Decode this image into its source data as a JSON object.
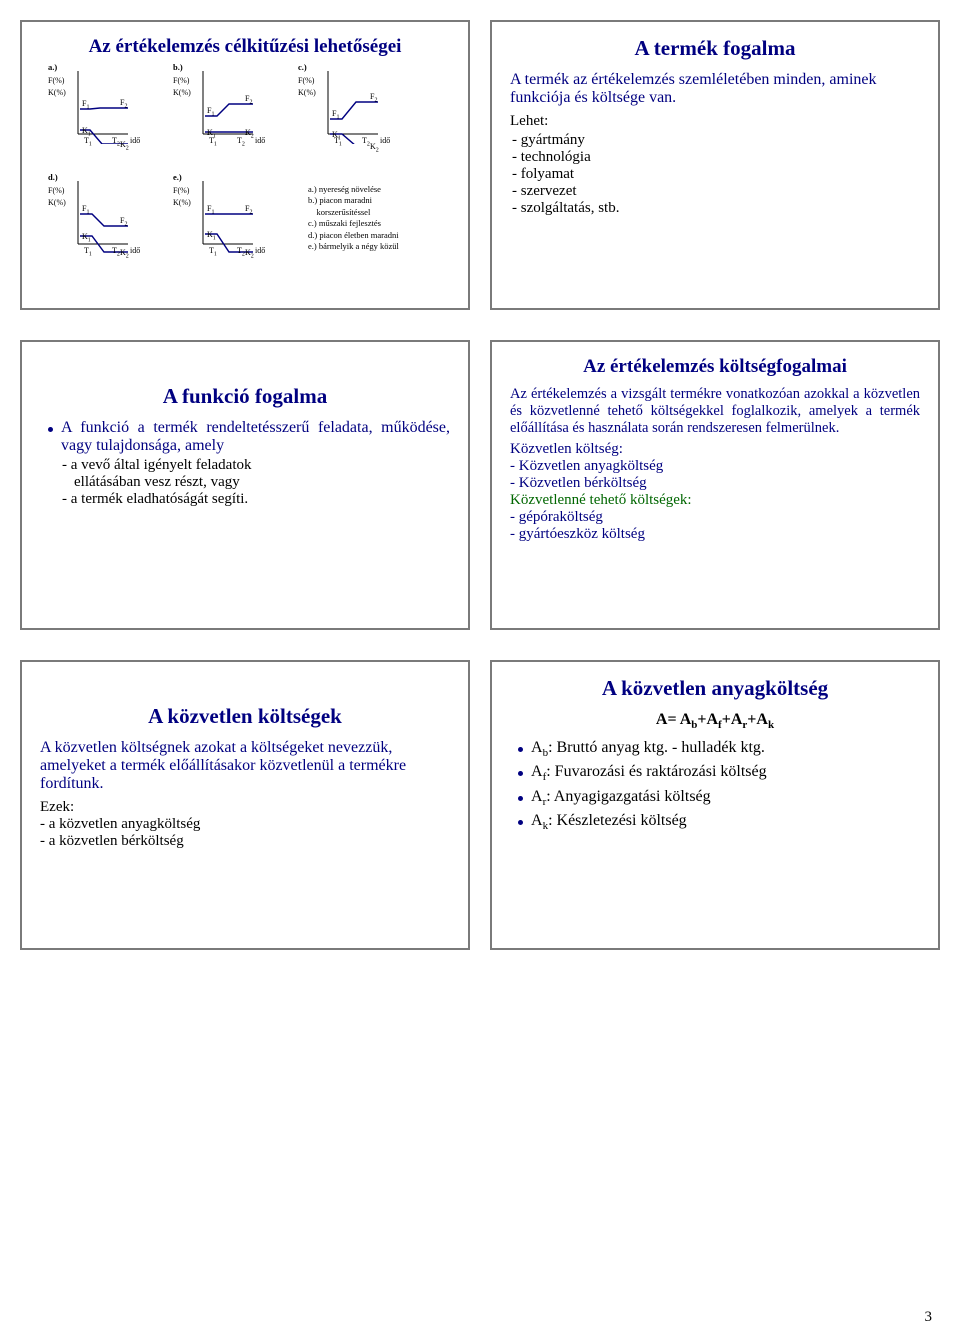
{
  "page_number": "3",
  "colors": {
    "border": "#7a7a7a",
    "navy": "#000080",
    "black": "#000000",
    "green": "#006600",
    "bg": "#ffffff",
    "chart_line": "#000080"
  },
  "slide1": {
    "title": "Az értékelemzés célkitűzési lehetőségei",
    "y_lbl_1": "F(%)",
    "y_lbl_2": "K(%)",
    "x_lbl": "idő",
    "T1": "T",
    "T2": "T",
    "F1": "F",
    "F2": "F",
    "K1": "K",
    "K2": "K",
    "a": "a.)",
    "b": "b.)",
    "c": "c.)",
    "d": "d.)",
    "e": "e.)",
    "legend_a": "a.) nyereség növelése",
    "legend_b": "b.) piacon maradni",
    "legend_b2": "korszerűsítéssel",
    "legend_c": "c.) műszaki fejlesztés",
    "legend_d": "d.) piacon életben maradni",
    "legend_e": "e.) bármelyik a négy közül",
    "charts": {
      "a": {
        "F": [
          [
            0,
            35
          ],
          [
            10,
            35
          ],
          [
            20,
            34
          ],
          [
            48,
            34
          ]
        ],
        "K": [
          [
            0,
            56
          ],
          [
            10,
            56
          ],
          [
            22,
            70
          ],
          [
            48,
            70
          ]
        ]
      },
      "b": {
        "F": [
          [
            0,
            42
          ],
          [
            12,
            42
          ],
          [
            24,
            30
          ],
          [
            48,
            30
          ]
        ],
        "K": [
          [
            0,
            58
          ],
          [
            12,
            58
          ],
          [
            24,
            58
          ],
          [
            48,
            58
          ]
        ]
      },
      "c": {
        "F": [
          [
            0,
            45
          ],
          [
            12,
            45
          ],
          [
            26,
            28
          ],
          [
            48,
            28
          ]
        ],
        "K": [
          [
            0,
            60
          ],
          [
            12,
            60
          ],
          [
            26,
            72
          ],
          [
            48,
            72
          ]
        ]
      },
      "d": {
        "F": [
          [
            0,
            30
          ],
          [
            12,
            30
          ],
          [
            24,
            42
          ],
          [
            48,
            42
          ]
        ],
        "K": [
          [
            0,
            52
          ],
          [
            12,
            52
          ],
          [
            24,
            68
          ],
          [
            48,
            68
          ]
        ]
      },
      "e": {
        "F": [
          [
            0,
            30
          ],
          [
            12,
            30
          ],
          [
            24,
            30
          ],
          [
            48,
            30
          ]
        ],
        "K": [
          [
            0,
            50
          ],
          [
            12,
            50
          ],
          [
            24,
            68
          ],
          [
            48,
            68
          ]
        ]
      }
    }
  },
  "slide2": {
    "title": "A termék fogalma",
    "lead": "A termék az értékelemzés szemléletében minden, aminek funkciója és költsége van.",
    "lehet": "Lehet:",
    "items": [
      "- gyártmány",
      "- technológia",
      "- folyamat",
      "- szervezet",
      "- szolgáltatás, stb."
    ]
  },
  "slide3": {
    "title": "A funkció fogalma",
    "bullet": "A funkció a termék rendeltetésszerű feladata, működése, vagy tulajdonsága, amely",
    "l1": "- a vevő által igényelt feladatok",
    "l2": "ellátásában vesz részt, vagy",
    "l3": "- a termék eladhatóságát segíti."
  },
  "slide4": {
    "title": "Az értékelemzés költségfogalmai",
    "p1": "Az értékelemzés a vizsgált termékre vonatkozóan azokkal a közvetlen és közvetlenné tehető költségekkel foglalkozik, amelyek a termék előállítása és használata során rendszeresen felmerülnek.",
    "h1": "Közvetlen költség:",
    "i1": "- Közvetlen anyagköltség",
    "i2": "- Közvetlen bérköltség",
    "h2": "Közvetlenné tehető költségek:",
    "i3": "- gépóraköltség",
    "i4": "- gyártóeszköz költség"
  },
  "slide5": {
    "title": "A közvetlen költségek",
    "p1": "A közvetlen költségnek azokat a költségeket nevezzük, amelyeket a termék előállításakor közvetlenül a termékre fordítunk.",
    "h1": "Ezek:",
    "i1": "- a közvetlen anyagköltség",
    "i2": "- a közvetlen bérköltség"
  },
  "slide6": {
    "title": "A közvetlen anyagköltség",
    "formula_plain": "A= A_b+A_f+A_r+A_k",
    "b1_pre": "A",
    "b1_sub": "b",
    "b1_post": ": Bruttó anyag ktg. - hulladék ktg.",
    "b2_pre": "A",
    "b2_sub": "f",
    "b2_post": ": Fuvarozási és raktározási költség",
    "b3_pre": "A",
    "b3_sub": "r",
    "b3_post": ": Anyagigazgatási költség",
    "b4_pre": "A",
    "b4_sub": "k",
    "b4_post": ": Készletezési költség"
  }
}
